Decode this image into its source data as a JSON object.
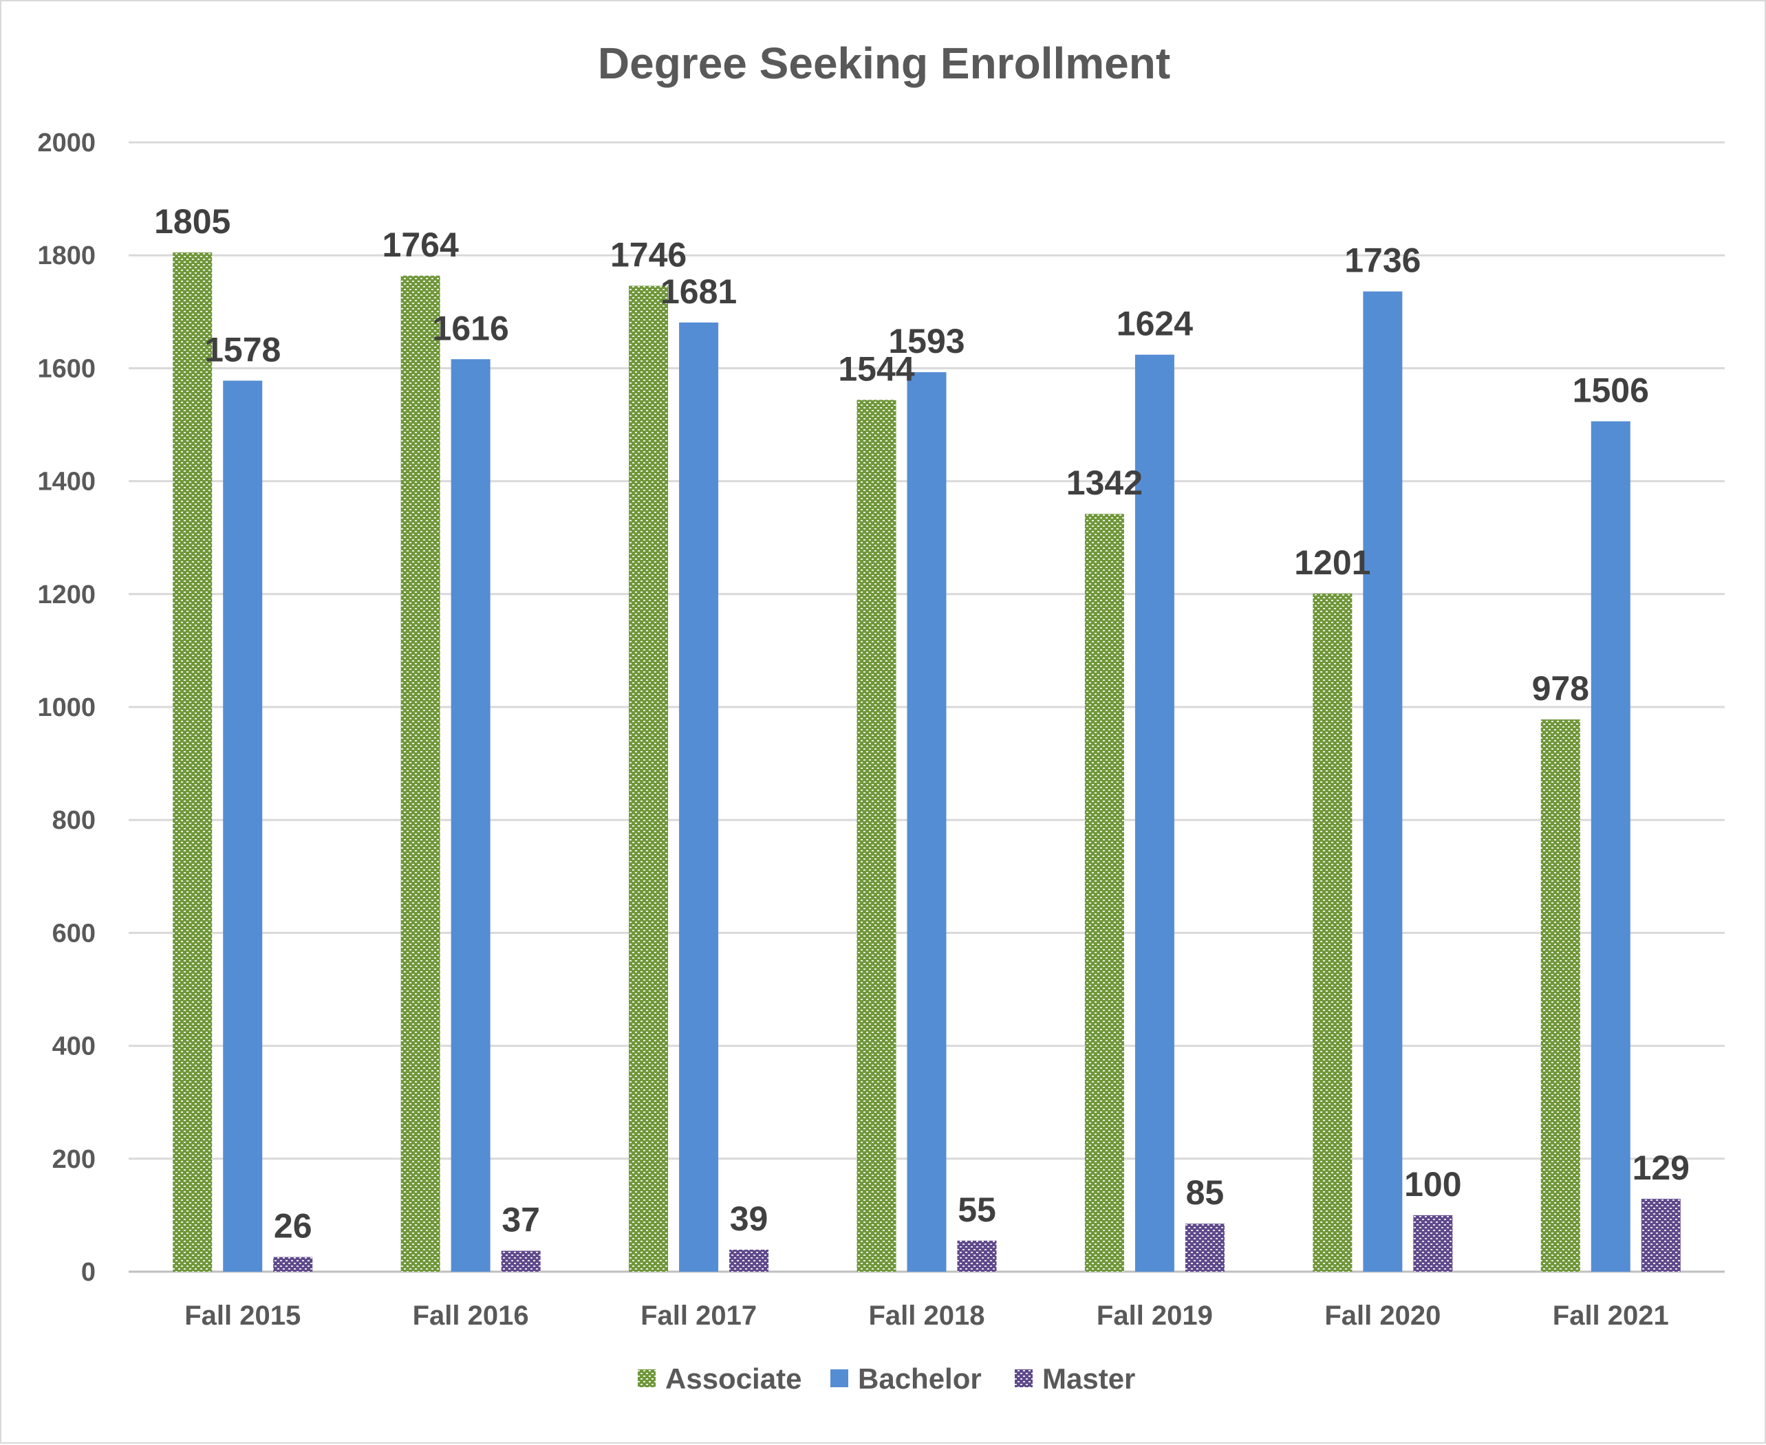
{
  "colors": {
    "associate": "#70973a",
    "bachelor": "#548dd4",
    "master": "#5f4a8b",
    "grid": "#d9d9d9",
    "text": "#595959",
    "label": "#404040"
  },
  "chart_data": {
    "type": "bar",
    "title": "Degree Seeking Enrollment",
    "xlabel": "",
    "ylabel": "",
    "ylim": [
      0,
      2000
    ],
    "yticks": [
      0,
      200,
      400,
      600,
      800,
      1000,
      1200,
      1400,
      1600,
      1800,
      2000
    ],
    "grid": true,
    "legend_position": "bottom",
    "categories": [
      "Fall 2015",
      "Fall 2016",
      "Fall 2017",
      "Fall 2018",
      "Fall 2019",
      "Fall 2020",
      "Fall 2021"
    ],
    "series": [
      {
        "name": "Associate",
        "values": [
          1805,
          1764,
          1746,
          1544,
          1342,
          1201,
          978
        ],
        "pattern": "dotted"
      },
      {
        "name": "Bachelor",
        "values": [
          1578,
          1616,
          1681,
          1593,
          1624,
          1736,
          1506
        ],
        "pattern": "solid"
      },
      {
        "name": "Master",
        "values": [
          26,
          37,
          39,
          55,
          85,
          100,
          129
        ],
        "pattern": "dotted"
      }
    ],
    "data_labels": true
  }
}
